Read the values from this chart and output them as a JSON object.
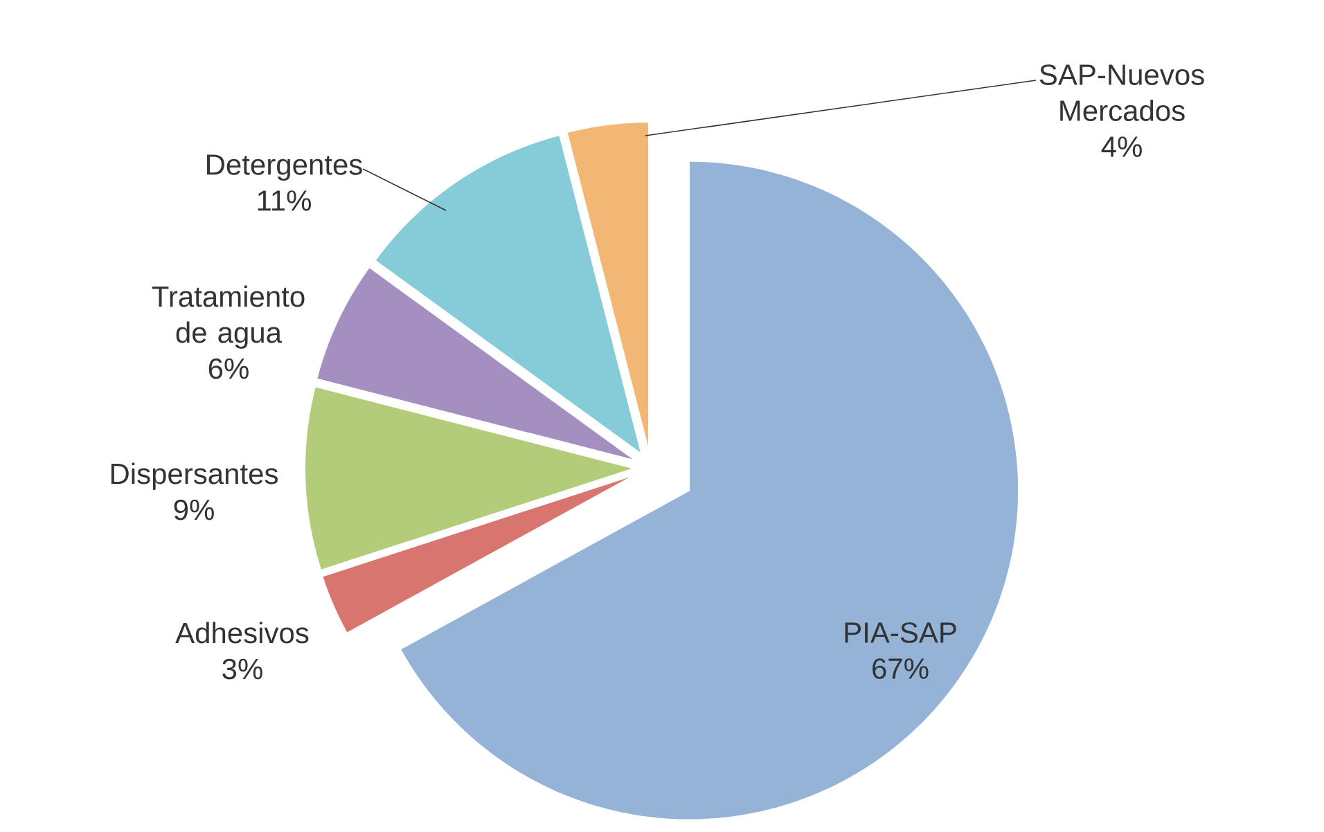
{
  "chart_data": {
    "type": "pie",
    "categories": [
      "PIA-SAP",
      "Adhesivos",
      "Dispersantes",
      "Tratamiento de agua",
      "Detergentes",
      "SAP-Nuevos Mercados"
    ],
    "values": [
      67,
      3,
      9,
      6,
      11,
      4
    ],
    "value_labels": [
      "67%",
      "3%",
      "9%",
      "6%",
      "11%",
      "4%"
    ],
    "colors": [
      "#95b3d7",
      "#d9756f",
      "#b3cc79",
      "#a48fc0",
      "#86cbd8",
      "#f2b675"
    ]
  }
}
